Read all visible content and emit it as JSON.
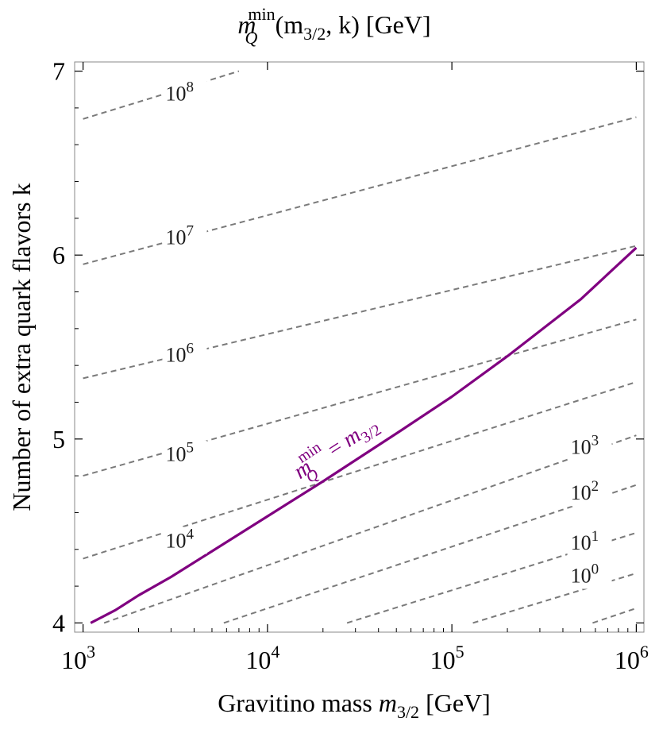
{
  "chart_data": {
    "type": "line",
    "title": "m_Q^min(m_3/2, k) [GeV]",
    "title_parts": {
      "m": "m",
      "sup": "min",
      "sub": "Q",
      "args": "(m",
      "args_sub": "3/2",
      "args_rest": ", k) [GeV]"
    },
    "xlabel": "Gravitino mass m_3/2 [GeV]",
    "xlabel_parts": {
      "text": "Gravitino mass ",
      "m": "m",
      "sub": "3/2",
      "unit": " [GeV]"
    },
    "ylabel": "Number of extra quark flavors k",
    "xscale": "log",
    "xlim": [
      900,
      1100000
    ],
    "ylim": [
      3.95,
      7.05
    ],
    "x_ticks": [
      {
        "base": "10",
        "exp": "3",
        "value": 1000
      },
      {
        "base": "10",
        "exp": "4",
        "value": 10000
      },
      {
        "base": "10",
        "exp": "5",
        "value": 100000
      },
      {
        "base": "10",
        "exp": "6",
        "value": 1000000
      }
    ],
    "y_ticks": [
      "4",
      "5",
      "6",
      "7"
    ],
    "contour_color": "#7a7a7a",
    "curve_color": "#800080",
    "contours": [
      {
        "label_base": "10",
        "label_exp": "8",
        "label_x": 2800,
        "label_y": 6.84,
        "points": [
          [
            1000,
            6.74
          ],
          [
            7000,
            7.0
          ]
        ]
      },
      {
        "label_base": "10",
        "label_exp": "7",
        "label_x": 2800,
        "label_y": 6.06,
        "points": [
          [
            1000,
            5.95
          ],
          [
            1000000,
            6.75
          ]
        ]
      },
      {
        "label_base": "10",
        "label_exp": "6",
        "label_x": 2800,
        "label_y": 5.42,
        "points": [
          [
            1000,
            5.33
          ],
          [
            1000000,
            6.05
          ]
        ]
      },
      {
        "label_base": "10",
        "label_exp": "5",
        "label_x": 2800,
        "label_y": 4.88,
        "points": [
          [
            1000,
            4.8
          ],
          [
            1000000,
            5.65
          ]
        ]
      },
      {
        "label_base": "10",
        "label_exp": "4",
        "label_x": 2800,
        "label_y": 4.41,
        "points": [
          [
            1000,
            4.35
          ],
          [
            1000000,
            5.31
          ]
        ]
      },
      {
        "label_base": "10",
        "label_exp": "3",
        "label_x": 440000,
        "label_y": 4.92,
        "points": [
          [
            1300,
            4.0
          ],
          [
            1000000,
            5.02
          ]
        ]
      },
      {
        "label_base": "10",
        "label_exp": "2",
        "label_x": 440000,
        "label_y": 4.67,
        "points": [
          [
            5800,
            4.0
          ],
          [
            1000000,
            4.75
          ]
        ]
      },
      {
        "label_base": "10",
        "label_exp": "1",
        "label_x": 440000,
        "label_y": 4.4,
        "points": [
          [
            27000,
            4.0
          ],
          [
            1000000,
            4.49
          ]
        ]
      },
      {
        "label_base": "10",
        "label_exp": "0",
        "label_x": 440000,
        "label_y": 4.22,
        "points": [
          [
            130000,
            4.0
          ],
          [
            1000000,
            4.27
          ]
        ]
      },
      {
        "label_base": "",
        "label_exp": "",
        "points": [
          [
            580000,
            4.0
          ],
          [
            1000000,
            4.08
          ]
        ]
      }
    ],
    "series": [
      {
        "name": "m_Q^min = m_3/2",
        "label_parts": {
          "m": "m",
          "sup": "min",
          "sub": "Q",
          "eq": " = ",
          "rhs": "m",
          "rhs_sub": "3/2"
        },
        "label_x": 15000,
        "label_y": 4.78,
        "x": [
          1100,
          1500,
          2000,
          3000,
          5000,
          10000,
          20000,
          50000,
          100000,
          200000,
          500000,
          1000000
        ],
        "y": [
          4.0,
          4.07,
          4.15,
          4.25,
          4.39,
          4.58,
          4.77,
          5.03,
          5.23,
          5.45,
          5.76,
          6.04
        ]
      }
    ]
  }
}
